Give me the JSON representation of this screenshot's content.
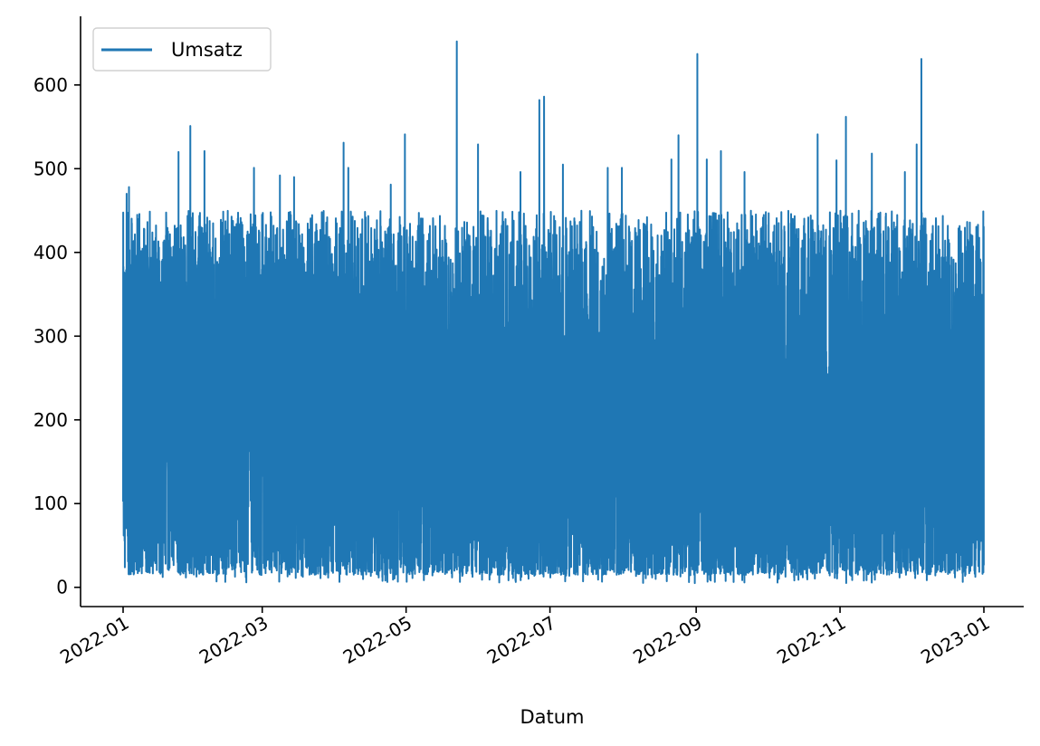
{
  "chart_data": {
    "type": "line",
    "title": "",
    "xlabel": "Datum",
    "ylabel": "",
    "x_type": "date",
    "x_range": [
      "2022-01-01",
      "2022-12-31"
    ],
    "x_ticks": [
      "2022-01",
      "2022-03",
      "2022-05",
      "2022-07",
      "2022-09",
      "2022-11",
      "2023-01"
    ],
    "ylim": [
      -23,
      682
    ],
    "y_ticks": [
      0,
      100,
      200,
      300,
      400,
      500,
      600
    ],
    "grid": false,
    "legend": {
      "position": "top-left"
    },
    "color": "#1f77b4",
    "series": [
      {
        "name": "Umsatz",
        "sampling": "hourly",
        "value_range": [
          5,
          652
        ],
        "typical_range": [
          15,
          450
        ],
        "peaks": [
          {
            "x": "2022-01-02",
            "y": 470
          },
          {
            "x": "2022-01-03",
            "y": 478
          },
          {
            "x": "2022-01-24",
            "y": 520
          },
          {
            "x": "2022-01-29",
            "y": 551
          },
          {
            "x": "2022-02-04",
            "y": 521
          },
          {
            "x": "2022-02-25",
            "y": 501
          },
          {
            "x": "2022-03-08",
            "y": 492
          },
          {
            "x": "2022-03-14",
            "y": 490
          },
          {
            "x": "2022-04-04",
            "y": 531
          },
          {
            "x": "2022-04-06",
            "y": 501
          },
          {
            "x": "2022-04-24",
            "y": 481
          },
          {
            "x": "2022-04-30",
            "y": 541
          },
          {
            "x": "2022-05-22",
            "y": 652
          },
          {
            "x": "2022-05-31",
            "y": 529
          },
          {
            "x": "2022-06-18",
            "y": 496
          },
          {
            "x": "2022-06-26",
            "y": 582
          },
          {
            "x": "2022-06-28",
            "y": 586
          },
          {
            "x": "2022-07-06",
            "y": 505
          },
          {
            "x": "2022-07-25",
            "y": 501
          },
          {
            "x": "2022-07-31",
            "y": 501
          },
          {
            "x": "2022-08-21",
            "y": 511
          },
          {
            "x": "2022-08-24",
            "y": 540
          },
          {
            "x": "2022-09-01",
            "y": 637
          },
          {
            "x": "2022-09-05",
            "y": 511
          },
          {
            "x": "2022-09-11",
            "y": 521
          },
          {
            "x": "2022-09-21",
            "y": 496
          },
          {
            "x": "2022-10-22",
            "y": 541
          },
          {
            "x": "2022-10-30",
            "y": 510
          },
          {
            "x": "2022-11-03",
            "y": 562
          },
          {
            "x": "2022-11-14",
            "y": 518
          },
          {
            "x": "2022-11-28",
            "y": 496
          },
          {
            "x": "2022-12-03",
            "y": 529
          },
          {
            "x": "2022-12-05",
            "y": 631
          },
          {
            "x": "2022-12-29",
            "y": 433
          }
        ]
      }
    ]
  }
}
